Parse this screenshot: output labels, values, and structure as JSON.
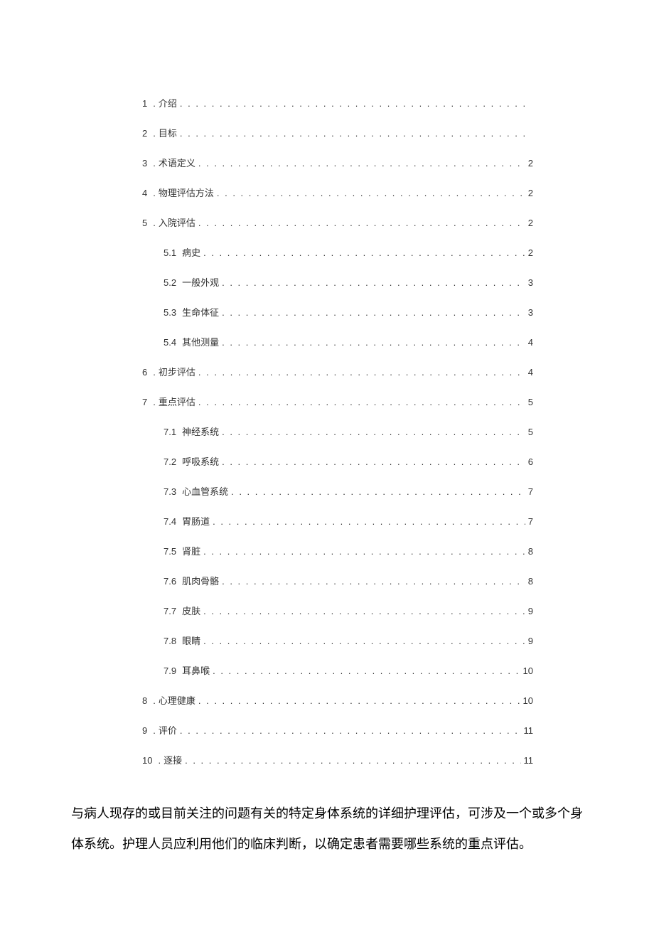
{
  "toc": [
    {
      "num": "1",
      "prefix": ".",
      "title": "介绍",
      "page": "",
      "level": 0
    },
    {
      "num": "2",
      "prefix": ".",
      "title": "目标",
      "page": "",
      "level": 0
    },
    {
      "num": "3",
      "prefix": ".",
      "title": "术语定义",
      "page": "2",
      "level": 0
    },
    {
      "num": "4",
      "prefix": ".",
      "title": "物理评估方法",
      "page": "2",
      "level": 0
    },
    {
      "num": "5",
      "prefix": ".",
      "title": "入院评估",
      "page": "2",
      "level": 0
    },
    {
      "num": "5.1",
      "prefix": "",
      "title": "病史",
      "page": "2",
      "level": 1
    },
    {
      "num": "5.2",
      "prefix": "",
      "title": "一般外观",
      "page": "3",
      "level": 1
    },
    {
      "num": "5.3",
      "prefix": "",
      "title": "生命体征",
      "page": "3",
      "level": 1
    },
    {
      "num": "5.4",
      "prefix": "",
      "title": "其他测量",
      "page": "4",
      "level": 1
    },
    {
      "num": "6",
      "prefix": ".",
      "title": "初步评估",
      "page": "4",
      "level": 0
    },
    {
      "num": "7",
      "prefix": ".",
      "title": "重点评估",
      "page": "5",
      "level": 0
    },
    {
      "num": "7.1",
      "prefix": "",
      "title": "神经系统",
      "page": "5",
      "level": 1
    },
    {
      "num": "7.2",
      "prefix": "",
      "title": "呼吸系统",
      "page": "6",
      "level": 1
    },
    {
      "num": "7.3",
      "prefix": "",
      "title": "心血管系统",
      "page": "7",
      "level": 1
    },
    {
      "num": "7.4",
      "prefix": "",
      "title": "胃肠道",
      "page": "7",
      "level": 1
    },
    {
      "num": "7.5",
      "prefix": "",
      "title": "肾脏",
      "page": "8",
      "level": 1
    },
    {
      "num": "7.6",
      "prefix": "",
      "title": "肌肉骨骼",
      "page": "8",
      "level": 1
    },
    {
      "num": "7.7",
      "prefix": "",
      "title": "皮肤",
      "page": "9",
      "level": 1
    },
    {
      "num": "7.8",
      "prefix": "",
      "title": "眼睛",
      "page": "9",
      "level": 1
    },
    {
      "num": "7.9",
      "prefix": "",
      "title": "耳鼻喉",
      "page": "10",
      "level": 1
    },
    {
      "num": "8",
      "prefix": ".",
      "title": "心理健康",
      "page": "10",
      "level": 0
    },
    {
      "num": "9",
      "prefix": ".",
      "title": "评价",
      "page": "11",
      "level": 0
    },
    {
      "num": "10",
      "prefix": ".",
      "title": "逐接",
      "page": "11",
      "level": 0
    }
  ],
  "paragraph": "与病人现存的或目前关注的问题有关的特定身体系统的详细护理评估，可涉及一个或多个身体系统。护理人员应利用他们的临床判断，以确定患者需要哪些系统的重点评估。"
}
